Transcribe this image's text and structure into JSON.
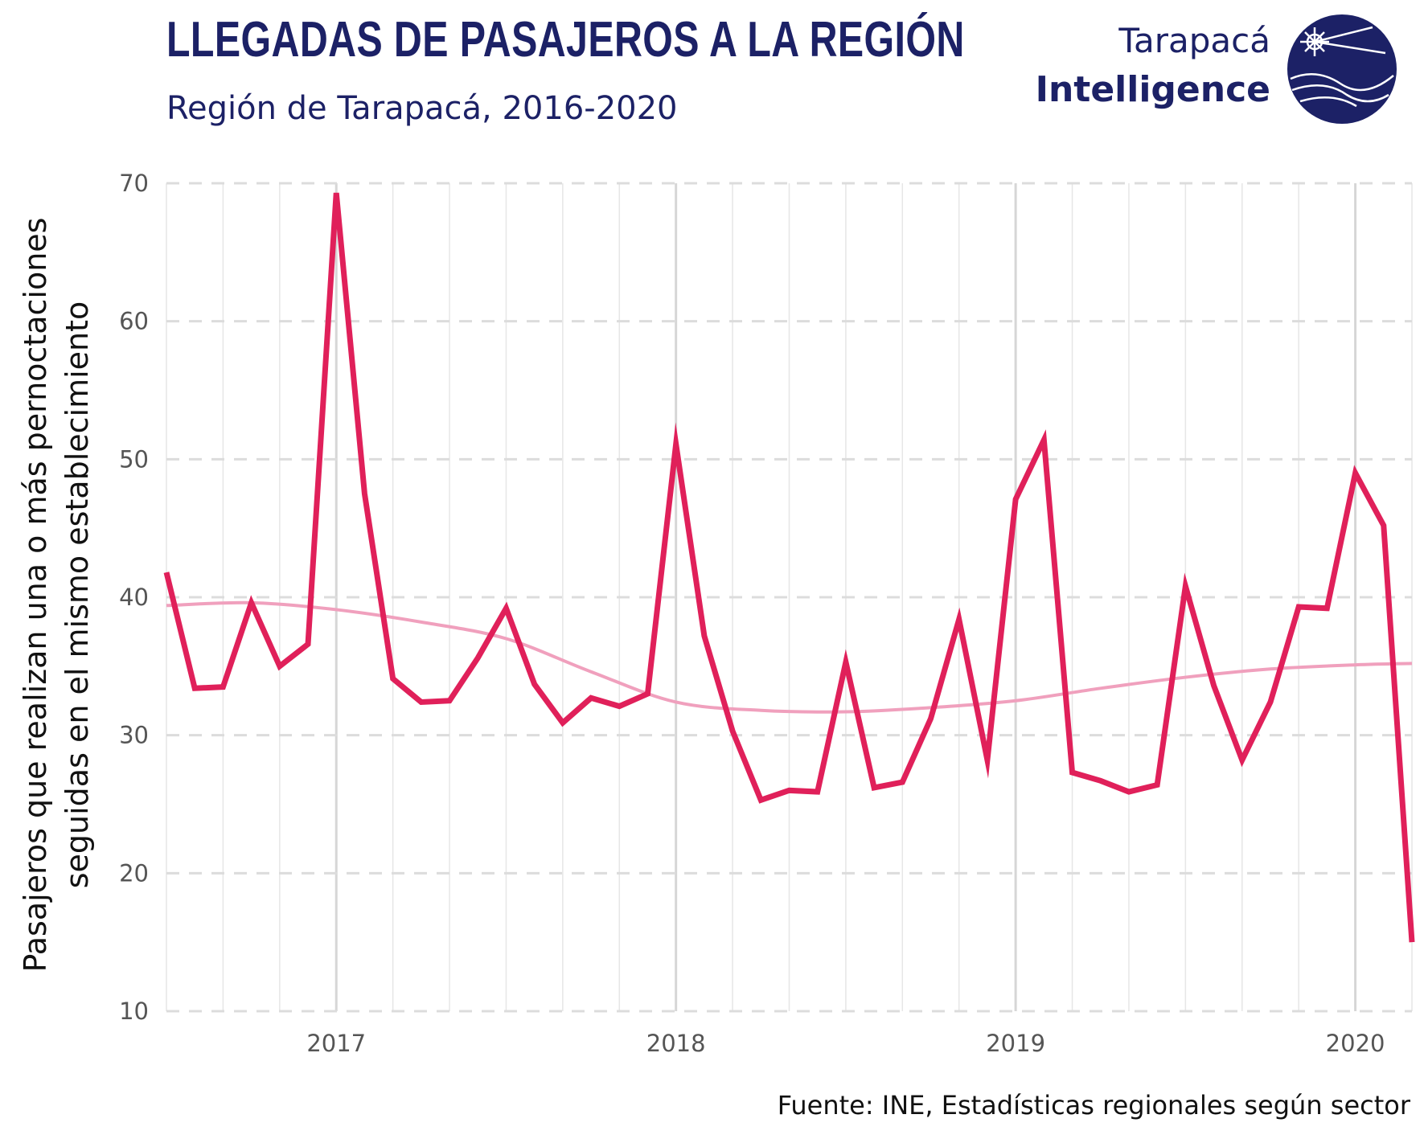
{
  "header": {
    "title": "LLEGADAS DE PASAJEROS A LA REGIÓN",
    "subtitle": "Región de Tarapacá, 2016-2020"
  },
  "logo": {
    "line1": "Tarapacá",
    "line2": "Intelligence",
    "color": "#1c2166"
  },
  "footer": {
    "source": "Fuente: INE, Estadísticas regionales según sector"
  },
  "colors": {
    "line": "#e0205a",
    "trend": "#f0a0bd",
    "grid": "#dddddd",
    "text": "#1c2166"
  },
  "chart_data": {
    "type": "line",
    "title": "LLEGADAS DE PASAJEROS A LA REGIÓN",
    "subtitle": "Región de Tarapacá, 2016-2020",
    "xlabel": "",
    "ylabel": "Pasajeros que realizan una o más pernoctaciones seguidas en el mismo establecimiento",
    "ylim": [
      10,
      70
    ],
    "yticks": [
      10,
      20,
      30,
      40,
      50,
      60,
      70
    ],
    "xlim": [
      "2016-07",
      "2020-03"
    ],
    "xticks": [
      {
        "date": "2017-01",
        "label": "2017"
      },
      {
        "date": "2018-01",
        "label": "2018"
      },
      {
        "date": "2019-01",
        "label": "2019"
      },
      {
        "date": "2020-01",
        "label": "2020"
      }
    ],
    "grid": true,
    "series": [
      {
        "role": "monthly",
        "x": [
          "2016-07",
          "2016-08",
          "2016-09",
          "2016-10",
          "2016-11",
          "2016-12",
          "2017-01",
          "2017-02",
          "2017-03",
          "2017-04",
          "2017-05",
          "2017-06",
          "2017-07",
          "2017-08",
          "2017-09",
          "2017-10",
          "2017-11",
          "2017-12",
          "2018-01",
          "2018-02",
          "2018-03",
          "2018-04",
          "2018-05",
          "2018-06",
          "2018-07",
          "2018-08",
          "2018-09",
          "2018-10",
          "2018-11",
          "2018-12",
          "2019-01",
          "2019-02",
          "2019-03",
          "2019-04",
          "2019-05",
          "2019-06",
          "2019-07",
          "2019-08",
          "2019-09",
          "2019-10",
          "2019-11",
          "2019-12",
          "2020-01",
          "2020-02",
          "2020-03"
        ],
        "values": [
          41.8,
          33.4,
          33.5,
          39.6,
          35.0,
          36.6,
          69.3,
          47.5,
          34.1,
          32.4,
          32.5,
          35.6,
          39.2,
          33.7,
          30.9,
          32.7,
          32.1,
          33.0,
          51.1,
          37.2,
          30.3,
          25.3,
          26.0,
          25.9,
          35.3,
          26.2,
          26.6,
          31.2,
          38.4,
          28.2,
          47.1,
          51.4,
          27.3,
          26.7,
          25.9,
          26.4,
          40.8,
          33.6,
          28.2,
          32.4,
          39.3,
          39.2,
          49.0,
          45.2,
          15.0
        ]
      },
      {
        "role": "trend",
        "x": [
          "2016-07",
          "2016-10",
          "2017-01",
          "2017-04",
          "2017-07",
          "2017-10",
          "2018-01",
          "2018-04",
          "2018-07",
          "2018-10",
          "2019-01",
          "2019-04",
          "2019-07",
          "2019-10",
          "2020-01",
          "2020-03"
        ],
        "values": [
          39.4,
          39.6,
          39.1,
          38.2,
          37.0,
          34.6,
          32.4,
          31.8,
          31.7,
          32.0,
          32.5,
          33.4,
          34.2,
          34.8,
          35.1,
          35.2
        ]
      }
    ]
  }
}
